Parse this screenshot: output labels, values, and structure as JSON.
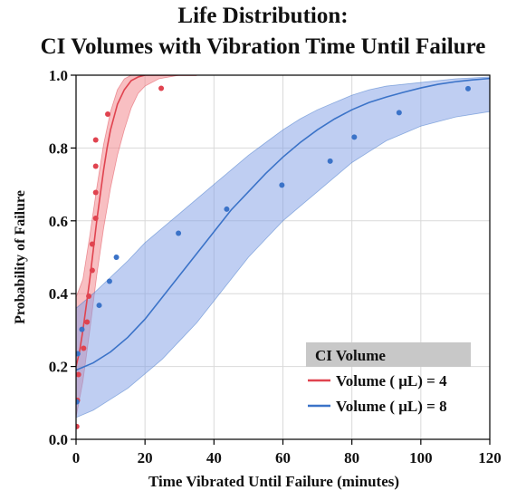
{
  "chart_data": {
    "type": "line",
    "title": [
      "Life Distribution:",
      "CI Volumes with Vibration Time Until Failure"
    ],
    "xlabel": "Time Vibrated Until Failure (minutes)",
    "ylabel": "Probability of Failure",
    "xlim": [
      0,
      120
    ],
    "ylim": [
      0,
      1.0
    ],
    "x_ticks": [
      0,
      20,
      40,
      60,
      80,
      100,
      120
    ],
    "y_ticks": [
      "0.0",
      "0.2",
      "0.4",
      "0.6",
      "0.8",
      "1.0"
    ],
    "grid": true,
    "legend": {
      "title": "CI Volume",
      "placement": "bottom-right"
    },
    "series": [
      {
        "name": "Volume ( μL) = 4",
        "color": "#e0434f",
        "band_color": "#f28b8f",
        "points": [
          [
            0.2,
            0.035
          ],
          [
            0.4,
            0.107
          ],
          [
            0.7,
            0.178
          ],
          [
            2.2,
            0.25
          ],
          [
            3.2,
            0.322
          ],
          [
            3.7,
            0.393
          ],
          [
            4.7,
            0.464
          ],
          [
            4.7,
            0.536
          ],
          [
            5.7,
            0.607
          ],
          [
            5.7,
            0.678
          ],
          [
            5.7,
            0.75
          ],
          [
            5.7,
            0.822
          ],
          [
            9.2,
            0.893
          ],
          [
            24.7,
            0.964
          ]
        ],
        "fit": [
          [
            0,
            0.2
          ],
          [
            1,
            0.24
          ],
          [
            2,
            0.3
          ],
          [
            3,
            0.37
          ],
          [
            4,
            0.44
          ],
          [
            5,
            0.52
          ],
          [
            6,
            0.6
          ],
          [
            7,
            0.67
          ],
          [
            8,
            0.74
          ],
          [
            9,
            0.8
          ],
          [
            10,
            0.85
          ],
          [
            12,
            0.92
          ],
          [
            14,
            0.96
          ],
          [
            16,
            0.985
          ],
          [
            18,
            0.995
          ],
          [
            20,
            1.0
          ],
          [
            35,
            1.0
          ]
        ],
        "band_upper": [
          [
            0,
            0.39
          ],
          [
            2,
            0.44
          ],
          [
            4,
            0.56
          ],
          [
            6,
            0.69
          ],
          [
            8,
            0.81
          ],
          [
            10,
            0.9
          ],
          [
            12,
            0.96
          ],
          [
            14,
            0.99
          ],
          [
            16,
            1.0
          ],
          [
            35,
            1.0
          ]
        ],
        "band_lower": [
          [
            0,
            0.06
          ],
          [
            2,
            0.16
          ],
          [
            4,
            0.3
          ],
          [
            6,
            0.45
          ],
          [
            8,
            0.58
          ],
          [
            10,
            0.69
          ],
          [
            12,
            0.78
          ],
          [
            14,
            0.85
          ],
          [
            16,
            0.91
          ],
          [
            18,
            0.95
          ],
          [
            20,
            0.97
          ],
          [
            24,
            0.99
          ],
          [
            30,
            1.0
          ],
          [
            35,
            1.0
          ]
        ]
      },
      {
        "name": "Volume ( μL) = 8",
        "color": "#3b73c8",
        "band_color": "#7f9ee6",
        "points": [
          [
            0.2,
            0.103
          ],
          [
            0.5,
            0.235
          ],
          [
            1.7,
            0.302
          ],
          [
            6.7,
            0.368
          ],
          [
            9.7,
            0.434
          ],
          [
            11.7,
            0.5
          ],
          [
            29.7,
            0.566
          ],
          [
            43.7,
            0.632
          ],
          [
            59.7,
            0.698
          ],
          [
            73.7,
            0.764
          ],
          [
            80.7,
            0.83
          ],
          [
            93.7,
            0.897
          ],
          [
            113.7,
            0.963
          ]
        ],
        "fit": [
          [
            0,
            0.19
          ],
          [
            5,
            0.21
          ],
          [
            10,
            0.24
          ],
          [
            15,
            0.28
          ],
          [
            20,
            0.33
          ],
          [
            25,
            0.39
          ],
          [
            30,
            0.45
          ],
          [
            35,
            0.51
          ],
          [
            40,
            0.57
          ],
          [
            45,
            0.63
          ],
          [
            50,
            0.68
          ],
          [
            55,
            0.73
          ],
          [
            60,
            0.775
          ],
          [
            65,
            0.815
          ],
          [
            70,
            0.85
          ],
          [
            75,
            0.88
          ],
          [
            80,
            0.905
          ],
          [
            85,
            0.925
          ],
          [
            90,
            0.94
          ],
          [
            95,
            0.953
          ],
          [
            100,
            0.965
          ],
          [
            105,
            0.975
          ],
          [
            110,
            0.982
          ],
          [
            115,
            0.987
          ],
          [
            120,
            0.991
          ]
        ],
        "band_upper": [
          [
            0,
            0.36
          ],
          [
            5,
            0.4
          ],
          [
            10,
            0.445
          ],
          [
            15,
            0.49
          ],
          [
            20,
            0.54
          ],
          [
            25,
            0.58
          ],
          [
            30,
            0.62
          ],
          [
            35,
            0.66
          ],
          [
            40,
            0.7
          ],
          [
            45,
            0.74
          ],
          [
            50,
            0.78
          ],
          [
            55,
            0.815
          ],
          [
            60,
            0.85
          ],
          [
            65,
            0.88
          ],
          [
            70,
            0.905
          ],
          [
            75,
            0.925
          ],
          [
            80,
            0.945
          ],
          [
            85,
            0.96
          ],
          [
            90,
            0.97
          ],
          [
            100,
            0.98
          ],
          [
            110,
            0.99
          ],
          [
            120,
            0.995
          ]
        ],
        "band_lower": [
          [
            0,
            0.06
          ],
          [
            5,
            0.08
          ],
          [
            10,
            0.11
          ],
          [
            15,
            0.14
          ],
          [
            20,
            0.18
          ],
          [
            25,
            0.22
          ],
          [
            30,
            0.27
          ],
          [
            35,
            0.32
          ],
          [
            40,
            0.38
          ],
          [
            45,
            0.44
          ],
          [
            50,
            0.5
          ],
          [
            55,
            0.55
          ],
          [
            60,
            0.6
          ],
          [
            65,
            0.64
          ],
          [
            70,
            0.68
          ],
          [
            75,
            0.72
          ],
          [
            80,
            0.76
          ],
          [
            85,
            0.79
          ],
          [
            90,
            0.82
          ],
          [
            95,
            0.84
          ],
          [
            100,
            0.86
          ],
          [
            110,
            0.885
          ],
          [
            120,
            0.9
          ]
        ]
      }
    ]
  }
}
